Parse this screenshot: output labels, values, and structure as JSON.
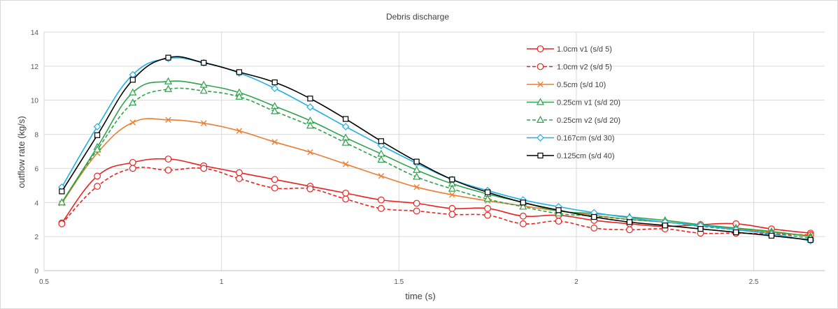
{
  "chart_data": {
    "type": "line",
    "title": "Debris discharge",
    "xlabel": "time (s)",
    "ylabel": "outflow rate (kg/s)",
    "xlim": [
      0.5,
      2.7
    ],
    "ylim": [
      0,
      14
    ],
    "xticks": [
      0.5,
      1,
      1.5,
      2,
      2.5
    ],
    "xtick_labels": [
      "0.5",
      "1",
      "1.5",
      "2",
      "2.5"
    ],
    "yticks": [
      0,
      2,
      4,
      6,
      8,
      10,
      12,
      14
    ],
    "ytick_labels": [
      "0",
      "2",
      "4",
      "6",
      "8",
      "10",
      "12",
      "14"
    ],
    "grid": "on",
    "legend_position": "top-right",
    "x": [
      0.55,
      0.65,
      0.75,
      0.85,
      0.95,
      1.05,
      1.15,
      1.25,
      1.35,
      1.45,
      1.55,
      1.65,
      1.75,
      1.85,
      1.95,
      2.05,
      2.15,
      2.25,
      2.35,
      2.45,
      2.55,
      2.66
    ],
    "series": [
      {
        "name": "1.0cm v1 (s/d 5)",
        "color": "#e8231f",
        "dash": "solid",
        "marker": "circle",
        "values": [
          2.8,
          5.55,
          6.35,
          6.55,
          6.15,
          5.75,
          5.35,
          4.95,
          4.55,
          4.15,
          3.95,
          3.65,
          3.65,
          3.2,
          3.25,
          2.95,
          2.75,
          2.6,
          2.7,
          2.75,
          2.45,
          2.2
        ]
      },
      {
        "name": "1.0cm v2 (s/d 5)",
        "color": "#e8231f",
        "dash": "dashed",
        "marker": "circle",
        "values": [
          2.75,
          4.95,
          6.0,
          5.9,
          6.0,
          5.4,
          4.85,
          4.8,
          4.2,
          3.65,
          3.5,
          3.3,
          3.25,
          2.75,
          2.9,
          2.5,
          2.4,
          2.45,
          2.2,
          2.2,
          2.15,
          2.1
        ]
      },
      {
        "name": "0.5cm (s/d 10)",
        "color": "#ed7d31",
        "dash": "solid",
        "marker": "x",
        "values": [
          3.95,
          6.9,
          8.7,
          8.85,
          8.65,
          8.2,
          7.55,
          6.95,
          6.25,
          5.55,
          4.9,
          4.45,
          4.1,
          3.8,
          3.5,
          3.25,
          3.0,
          2.85,
          2.65,
          2.45,
          2.25,
          2.05
        ]
      },
      {
        "name": "0.25cm v1 (s/d 20)",
        "color": "#2ca34a",
        "dash": "solid",
        "marker": "triangle",
        "values": [
          4.0,
          7.25,
          10.45,
          11.1,
          10.9,
          10.45,
          9.65,
          8.8,
          7.8,
          6.85,
          5.9,
          5.1,
          4.5,
          4.0,
          3.5,
          3.35,
          3.15,
          2.95,
          2.7,
          2.5,
          2.3,
          2.0
        ]
      },
      {
        "name": "0.25cm v2 (s/d 20)",
        "color": "#2ca34a",
        "dash": "dashed",
        "marker": "triangle",
        "values": [
          4.0,
          7.1,
          9.85,
          10.65,
          10.55,
          10.2,
          9.35,
          8.5,
          7.5,
          6.5,
          5.5,
          4.8,
          4.2,
          3.75,
          3.35,
          3.2,
          3.0,
          2.85,
          2.6,
          2.4,
          2.2,
          1.9
        ]
      },
      {
        "name": "0.167cm (s/d 30)",
        "color": "#1fb0e5",
        "dash": "solid",
        "marker": "diamond",
        "values": [
          4.9,
          8.45,
          11.5,
          12.45,
          12.2,
          11.6,
          10.7,
          9.6,
          8.45,
          7.35,
          6.3,
          5.35,
          4.7,
          4.15,
          3.75,
          3.4,
          3.1,
          2.85,
          2.65,
          2.4,
          2.15,
          1.75
        ]
      },
      {
        "name": "0.125cm (s/d 40)",
        "color": "#000000",
        "dash": "solid",
        "marker": "square",
        "values": [
          4.65,
          7.95,
          11.2,
          12.5,
          12.2,
          11.65,
          11.05,
          10.1,
          8.9,
          7.6,
          6.4,
          5.35,
          4.6,
          4.0,
          3.55,
          3.15,
          2.85,
          2.65,
          2.45,
          2.25,
          2.05,
          1.8
        ]
      }
    ]
  }
}
